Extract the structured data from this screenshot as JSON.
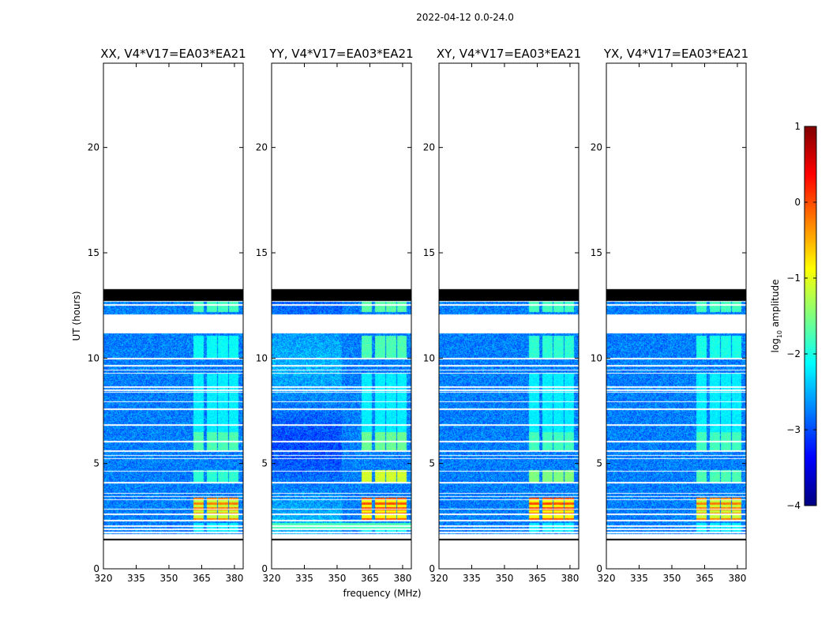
{
  "chart_data": {
    "type": "heatmap",
    "suptitle": "2022-04-12 0.0-24.0",
    "xlabel": "frequency (MHz)",
    "ylabel": "UT (hours)",
    "xlim": [
      320,
      384
    ],
    "ylim": [
      0,
      24
    ],
    "x_ticks": [
      "320",
      "335",
      "350",
      "365",
      "380"
    ],
    "y_ticks": [
      "0",
      "5",
      "10",
      "15",
      "20"
    ],
    "colorbar": {
      "label_main": "log",
      "label_sub": "10",
      "label_rest": " amplitude",
      "range": [
        -4,
        1
      ],
      "ticks": [
        "1",
        "0",
        "−1",
        "−2",
        "−3",
        "−4"
      ],
      "colormap": "jet"
    },
    "panels": [
      {
        "title": "XX, V4*V17=EA03*EA21",
        "polarization": "XX"
      },
      {
        "title": "YY, V4*V17=EA03*EA21",
        "polarization": "YY"
      },
      {
        "title": "XY, V4*V17=EA03*EA21",
        "polarization": "XY"
      },
      {
        "title": "YX, V4*V17=EA03*EA21",
        "polarization": "YX"
      }
    ],
    "data_coverage_ut": [
      1.4,
      12.7
    ],
    "flagged_band_ut": [
      12.75,
      13.3
    ],
    "gap_ut": [
      [
        1.45,
        1.65
      ],
      [
        11.2,
        12.1
      ]
    ],
    "rfi_channels_mhz": [
      363.5,
      369.5,
      374.5,
      379.5
    ]
  }
}
